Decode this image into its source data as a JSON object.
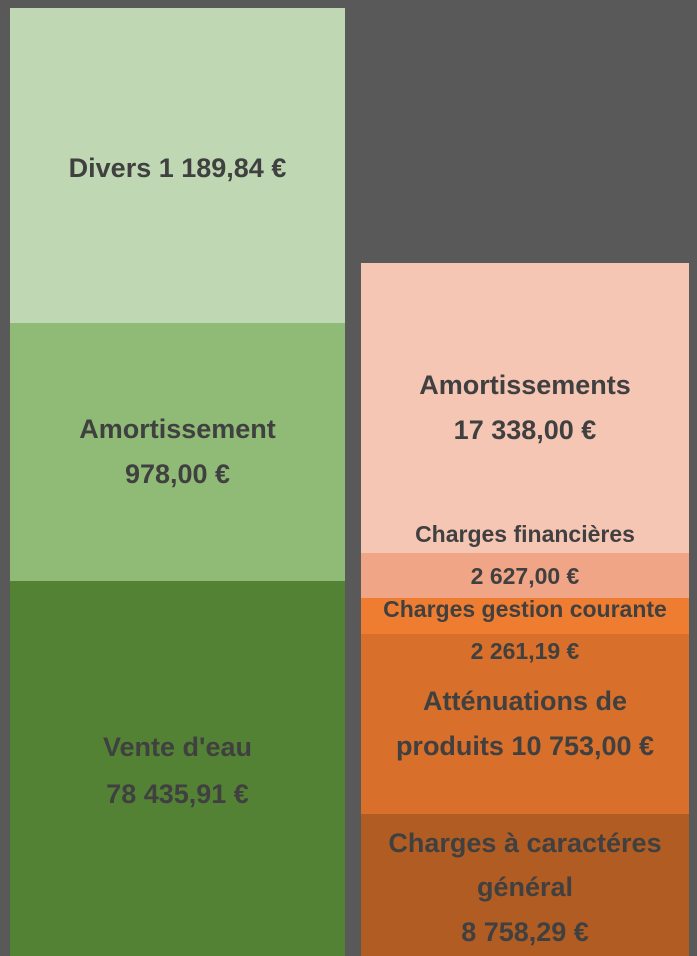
{
  "left": [
    {
      "lines": [
        "Divers 1 189,84 €"
      ]
    },
    {
      "lines": [
        "Amortissement",
        "978,00 €"
      ]
    },
    {
      "lines": [
        "Vente d'eau",
        "78 435,91 €"
      ]
    }
  ],
  "right": [
    {
      "lines": [
        "Amortissements",
        "17 338,00 €"
      ]
    },
    {
      "lines": [
        "Charges financières",
        "2 627,00 €"
      ]
    },
    {
      "lines": [
        "Charges gestion courante",
        "2 261,19 €"
      ]
    },
    {
      "lines": [
        "Atténuations de",
        "produits 10 753,00 €"
      ]
    },
    {
      "lines": [
        "Charges à caractéres",
        "général",
        "8 758,29 €"
      ]
    }
  ]
}
